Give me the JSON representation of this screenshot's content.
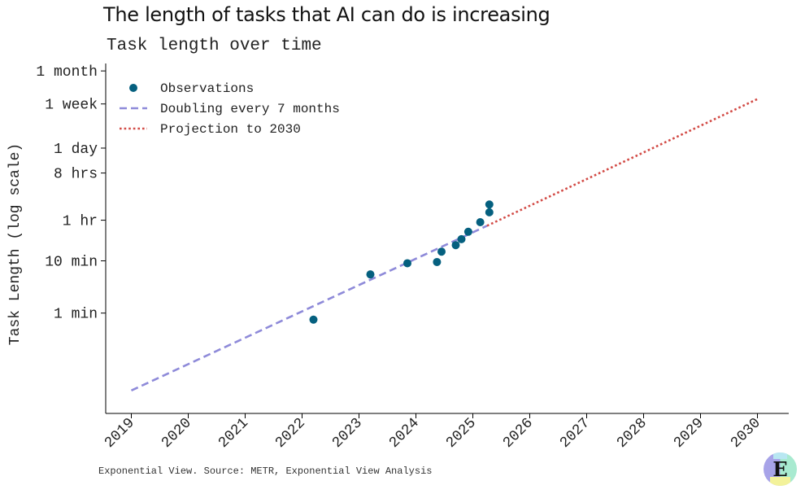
{
  "page": {
    "title": "The length of tasks that AI can do is increasing",
    "subtitle": "Task length over time",
    "source": "Exponential View. Source: METR, Exponential View Analysis"
  },
  "logo": {
    "letter": "E",
    "colors": [
      "#a7a3e8",
      "#a8ead0",
      "#f3f29a",
      "#b8e7f2"
    ]
  },
  "chart_data": {
    "type": "scatter",
    "title": "Task length over time",
    "xlabel": "",
    "ylabel": "Task Length (log scale)",
    "y_scale": "log",
    "y_unit": "minutes",
    "xlim": [
      2018.55,
      2030.55
    ],
    "ylim": [
      0.012,
      60000
    ],
    "x_ticks": [
      2019,
      2020,
      2021,
      2022,
      2023,
      2024,
      2025,
      2026,
      2027,
      2028,
      2029,
      2030
    ],
    "x_tick_labels": [
      "2019",
      "2020",
      "2021",
      "2022",
      "2023",
      "2024",
      "2025",
      "2026",
      "2027",
      "2028",
      "2029",
      "2030"
    ],
    "y_ticks": [
      1,
      10,
      60,
      480,
      1440,
      10080,
      43200
    ],
    "y_tick_labels": [
      "1 min",
      "10 min",
      "1 hr",
      "8 hrs",
      "1 day",
      "1 week",
      "1 month"
    ],
    "grid": false,
    "legend_position": "top-left",
    "series": [
      {
        "name": "Observations",
        "kind": "scatter",
        "color": "#05607f",
        "x": [
          2022.2,
          2023.2,
          2023.85,
          2024.37,
          2024.45,
          2024.7,
          2024.8,
          2024.92,
          2025.13,
          2025.29,
          2025.29
        ],
        "y": [
          0.75,
          5.5,
          9,
          9.5,
          15,
          20,
          26,
          36,
          55,
          85,
          120
        ]
      },
      {
        "name": "Doubling every 7 months",
        "kind": "line",
        "style": "dashed",
        "color": "#8e8ad9",
        "x": [
          2019.0,
          2025.25
        ],
        "y": [
          0.033,
          47
        ]
      },
      {
        "name": "Projection to 2030",
        "kind": "line",
        "style": "dotted",
        "color": "#d24a45",
        "x": [
          2025.25,
          2030.0
        ],
        "y": [
          47,
          12500
        ]
      }
    ]
  }
}
